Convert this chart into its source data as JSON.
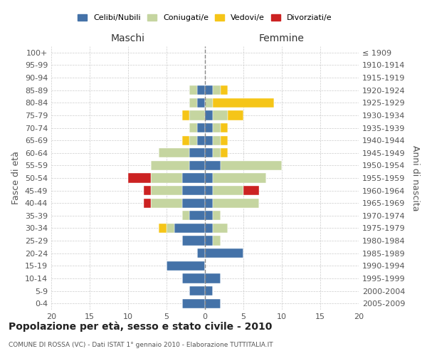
{
  "age_groups": [
    "100+",
    "95-99",
    "90-94",
    "85-89",
    "80-84",
    "75-79",
    "70-74",
    "65-69",
    "60-64",
    "55-59",
    "50-54",
    "45-49",
    "40-44",
    "35-39",
    "30-34",
    "25-29",
    "20-24",
    "15-19",
    "10-14",
    "5-9",
    "0-4"
  ],
  "birth_years": [
    "≤ 1909",
    "1910-1914",
    "1915-1919",
    "1920-1924",
    "1925-1929",
    "1930-1934",
    "1935-1939",
    "1940-1944",
    "1945-1949",
    "1950-1954",
    "1955-1959",
    "1960-1964",
    "1965-1969",
    "1970-1974",
    "1975-1979",
    "1980-1984",
    "1985-1989",
    "1990-1994",
    "1995-1999",
    "2000-2004",
    "2005-2009"
  ],
  "male": {
    "celibi": [
      0,
      0,
      0,
      1,
      1,
      0,
      1,
      1,
      2,
      2,
      3,
      3,
      3,
      2,
      4,
      3,
      1,
      5,
      3,
      2,
      3
    ],
    "coniugati": [
      0,
      0,
      0,
      1,
      1,
      2,
      1,
      1,
      4,
      5,
      4,
      4,
      4,
      1,
      1,
      0,
      0,
      0,
      0,
      0,
      0
    ],
    "vedovi": [
      0,
      0,
      0,
      0,
      0,
      1,
      0,
      1,
      0,
      0,
      0,
      0,
      0,
      0,
      1,
      0,
      0,
      0,
      0,
      0,
      0
    ],
    "divorziati": [
      0,
      0,
      0,
      0,
      0,
      0,
      0,
      0,
      0,
      0,
      3,
      1,
      1,
      0,
      0,
      0,
      0,
      0,
      0,
      0,
      0
    ]
  },
  "female": {
    "nubili": [
      0,
      0,
      0,
      1,
      0,
      1,
      1,
      1,
      1,
      2,
      1,
      1,
      1,
      1,
      1,
      1,
      5,
      0,
      2,
      1,
      2
    ],
    "coniugate": [
      0,
      0,
      0,
      1,
      1,
      2,
      1,
      1,
      1,
      8,
      7,
      4,
      6,
      1,
      2,
      1,
      0,
      0,
      0,
      0,
      0
    ],
    "vedove": [
      0,
      0,
      0,
      1,
      8,
      2,
      1,
      1,
      1,
      0,
      0,
      0,
      0,
      0,
      0,
      0,
      0,
      0,
      0,
      0,
      0
    ],
    "divorziate": [
      0,
      0,
      0,
      0,
      0,
      0,
      0,
      0,
      0,
      0,
      0,
      2,
      0,
      0,
      0,
      0,
      0,
      0,
      0,
      0,
      0
    ]
  },
  "colors": {
    "celibi": "#4472a8",
    "coniugati": "#c5d5a0",
    "vedovi": "#f5c518",
    "divorziati": "#cc2222"
  },
  "xlim": [
    -20,
    20
  ],
  "xticks": [
    -20,
    -15,
    -10,
    -5,
    0,
    5,
    10,
    15,
    20
  ],
  "xticklabels": [
    "20",
    "15",
    "10",
    "5",
    "0",
    "5",
    "10",
    "15",
    "20"
  ],
  "title": "Popolazione per età, sesso e stato civile - 2010",
  "subtitle": "COMUNE DI ROSSA (VC) - Dati ISTAT 1° gennaio 2010 - Elaborazione TUTTITALIA.IT",
  "ylabel_left": "Fasce di età",
  "ylabel_right": "Anni di nascita",
  "label_maschi": "Maschi",
  "label_femmine": "Femmine",
  "legend_celibi": "Celibi/Nubili",
  "legend_coniugati": "Coniugati/e",
  "legend_vedovi": "Vedovi/e",
  "legend_divorziati": "Divorziati/e",
  "background_color": "#ffffff",
  "grid_color": "#cccccc"
}
